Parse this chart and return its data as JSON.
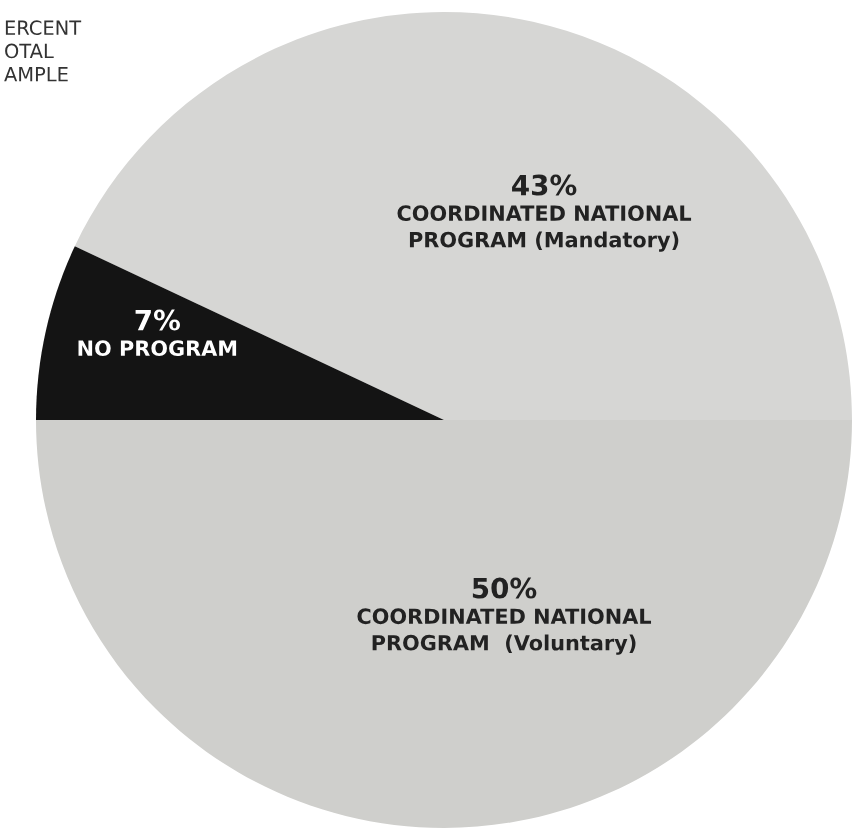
{
  "chart_data": {
    "type": "pie",
    "categories": [
      "COORDINATED NATIONAL\nPROGRAM (Mandatory)",
      "NO PROGRAM",
      "COORDINATED NATIONAL\nPROGRAM  (Voluntary)"
    ],
    "values": [
      43,
      7,
      50
    ],
    "value_labels": [
      "43%",
      "7%",
      "50%"
    ],
    "colors": [
      "#d6d6d4",
      "#141414",
      "#cfcfcc"
    ],
    "annotations": [
      "ERCENT\nOTAL\nAMPLE"
    ]
  }
}
